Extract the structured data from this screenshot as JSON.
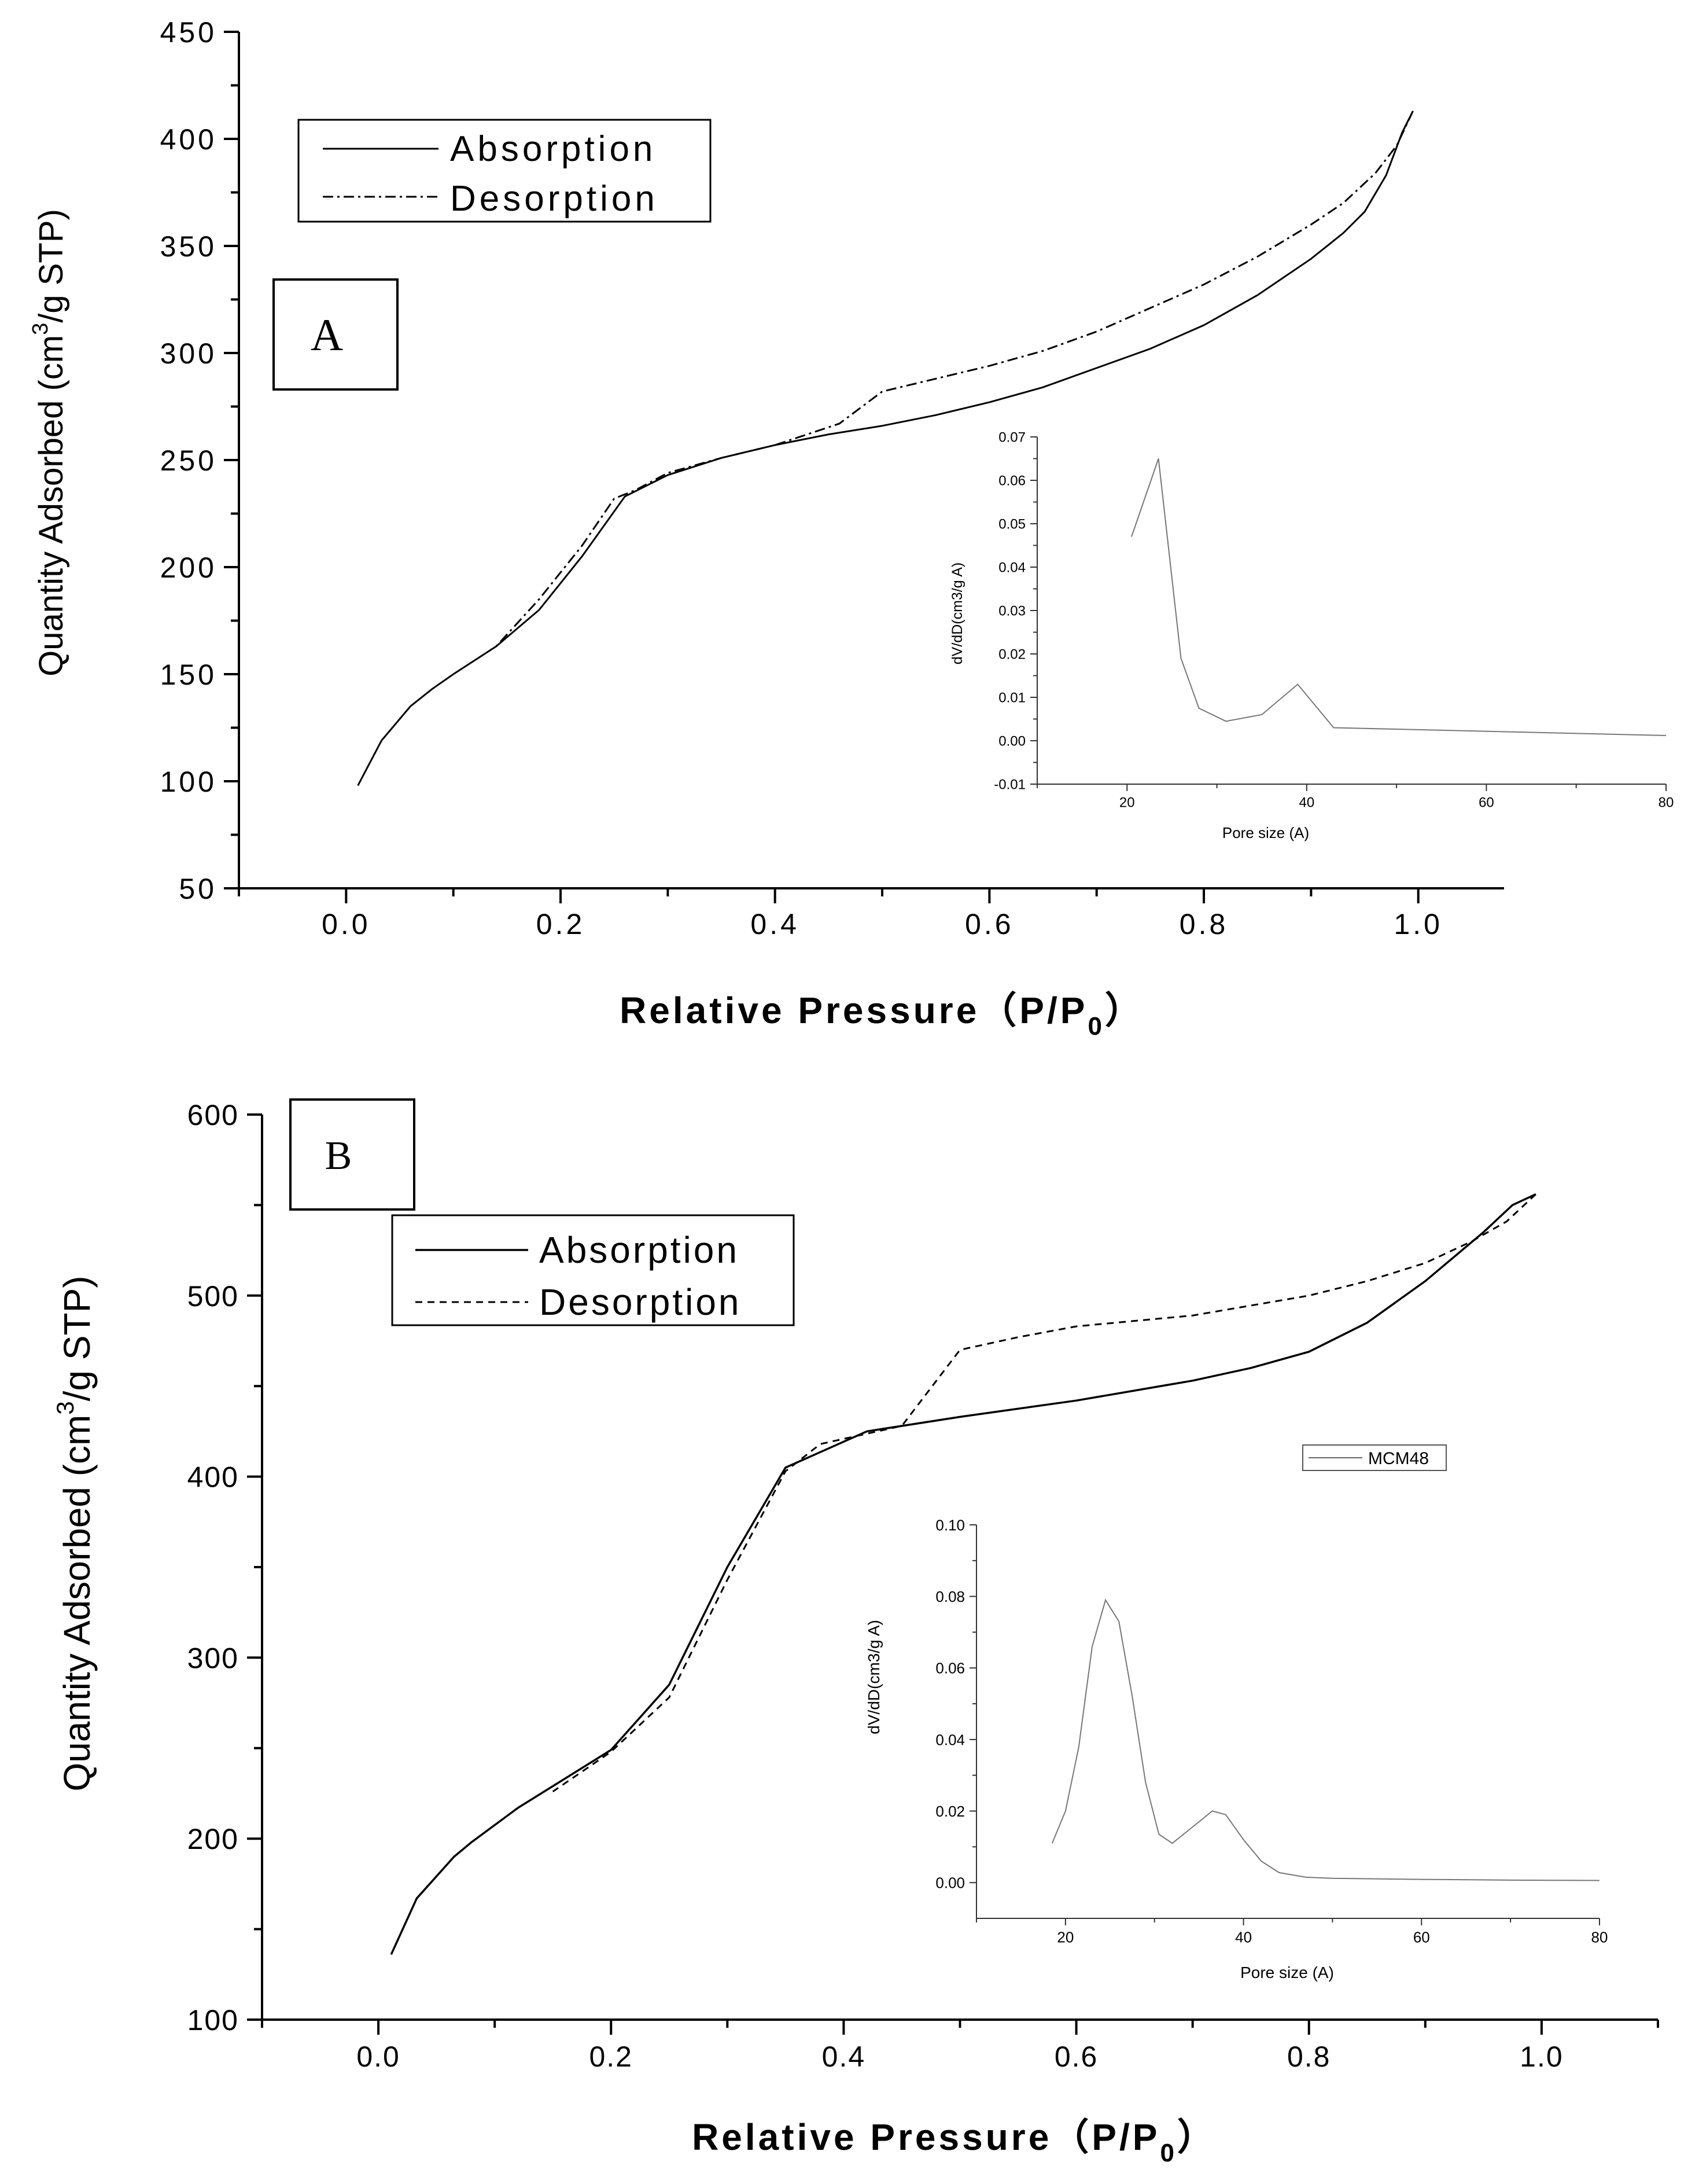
{
  "chart_data": [
    {
      "panel_label": "A",
      "type": "line",
      "xlabel": "Relative Pressure（P/P",
      "xlabel_sub": "0",
      "xlabel_close": "）",
      "ylabel": "Quantity Adsorbed (cm",
      "ylabel_sup": "3",
      "ylabel_rest": "/g STP)",
      "xlim": [
        -0.1,
        1.08
      ],
      "ylim": [
        50,
        450
      ],
      "xticks": [
        "0.0",
        "0.2",
        "0.4",
        "0.6",
        "0.8",
        "1.0"
      ],
      "yticks": [
        "50",
        "100",
        "150",
        "200",
        "250",
        "300",
        "350",
        "400",
        "450"
      ],
      "legend": [
        "Absorption",
        "Desorption"
      ],
      "series": [
        {
          "name": "Absorption",
          "points": [
            [
              0.011,
              98
            ],
            [
              0.033,
              119
            ],
            [
              0.06,
              135
            ],
            [
              0.08,
              143
            ],
            [
              0.1,
              150
            ],
            [
              0.14,
              163
            ],
            [
              0.18,
              180
            ],
            [
              0.22,
              205
            ],
            [
              0.26,
              233
            ],
            [
              0.3,
              243
            ],
            [
              0.35,
              251
            ],
            [
              0.4,
              257
            ],
            [
              0.45,
              262
            ],
            [
              0.5,
              266
            ],
            [
              0.55,
              271
            ],
            [
              0.6,
              277
            ],
            [
              0.65,
              284
            ],
            [
              0.7,
              293
            ],
            [
              0.75,
              302
            ],
            [
              0.8,
              313
            ],
            [
              0.85,
              327
            ],
            [
              0.9,
              344
            ],
            [
              0.93,
              356
            ],
            [
              0.95,
              366
            ],
            [
              0.97,
              383
            ],
            [
              0.985,
              403
            ],
            [
              0.995,
              413
            ]
          ]
        },
        {
          "name": "Desorption",
          "points": [
            [
              0.995,
              413
            ],
            [
              0.98,
              397
            ],
            [
              0.96,
              384
            ],
            [
              0.93,
              370
            ],
            [
              0.9,
              360
            ],
            [
              0.85,
              345
            ],
            [
              0.8,
              332
            ],
            [
              0.75,
              321
            ],
            [
              0.7,
              310
            ],
            [
              0.65,
              301
            ],
            [
              0.6,
              294
            ],
            [
              0.55,
              288
            ],
            [
              0.5,
              282
            ],
            [
              0.46,
              267
            ],
            [
              0.4,
              257
            ],
            [
              0.35,
              251
            ],
            [
              0.3,
              244
            ],
            [
              0.27,
              236
            ],
            [
              0.25,
              232
            ],
            [
              0.22,
              210
            ],
            [
              0.18,
              185
            ],
            [
              0.14,
              163
            ]
          ]
        }
      ],
      "inset": {
        "type": "line",
        "xlabel": "Pore size (A)",
        "ylabel": "dV/dD(cm3/g A)",
        "xlim": [
          10,
          80
        ],
        "ylim": [
          -0.01,
          0.07
        ],
        "xticks": [
          "20",
          "40",
          "60",
          "80"
        ],
        "yticks": [
          "-0.01",
          "0.00",
          "0.01",
          "0.02",
          "0.03",
          "0.04",
          "0.05",
          "0.06",
          "0.07"
        ],
        "points": [
          [
            20.5,
            0.047
          ],
          [
            23.5,
            0.065
          ],
          [
            26,
            0.019
          ],
          [
            28,
            0.0075
          ],
          [
            31,
            0.0045
          ],
          [
            35,
            0.006
          ],
          [
            39,
            0.013
          ],
          [
            43,
            0.003
          ],
          [
            80,
            0.0012
          ]
        ]
      }
    },
    {
      "panel_label": "B",
      "type": "line",
      "xlabel": "Relative Pressure（P/P",
      "xlabel_sub": "0",
      "xlabel_close": "）",
      "ylabel": "Quantity Adsorbed (cm",
      "ylabel_sup": "3",
      "ylabel_rest": "/g STP)",
      "xlim": [
        -0.1,
        1.1
      ],
      "ylim": [
        100,
        600
      ],
      "xticks": [
        "0.0",
        "0.2",
        "0.4",
        "0.6",
        "0.8",
        "1.0"
      ],
      "yticks": [
        "100",
        "200",
        "300",
        "400",
        "500",
        "600"
      ],
      "legend": [
        "Absorption",
        "Desorption"
      ],
      "series": [
        {
          "name": "Absorption",
          "points": [
            [
              0.011,
              136
            ],
            [
              0.033,
              167
            ],
            [
              0.065,
              190
            ],
            [
              0.08,
              198
            ],
            [
              0.12,
              217
            ],
            [
              0.16,
              233
            ],
            [
              0.2,
              249
            ],
            [
              0.25,
              285
            ],
            [
              0.3,
              350
            ],
            [
              0.35,
              405
            ],
            [
              0.42,
              425
            ],
            [
              0.5,
              433
            ],
            [
              0.6,
              442
            ],
            [
              0.7,
              453
            ],
            [
              0.75,
              460
            ],
            [
              0.8,
              469
            ],
            [
              0.85,
              485
            ],
            [
              0.9,
              508
            ],
            [
              0.95,
              535
            ],
            [
              0.975,
              550
            ],
            [
              0.995,
              556
            ]
          ]
        },
        {
          "name": "Desorption",
          "points": [
            [
              0.995,
              556
            ],
            [
              0.97,
              541
            ],
            [
              0.94,
              530
            ],
            [
              0.9,
              518
            ],
            [
              0.85,
              508
            ],
            [
              0.8,
              500
            ],
            [
              0.7,
              489
            ],
            [
              0.6,
              483
            ],
            [
              0.55,
              477
            ],
            [
              0.5,
              470
            ],
            [
              0.45,
              428
            ],
            [
              0.38,
              418
            ],
            [
              0.35,
              403
            ],
            [
              0.3,
              343
            ],
            [
              0.25,
              278
            ],
            [
              0.2,
              248
            ],
            [
              0.15,
              226
            ]
          ]
        }
      ],
      "inset": {
        "type": "line",
        "xlabel": "Pore size (A)",
        "ylabel": "dV/dD(cm3/g A)",
        "legend": [
          "MCM48"
        ],
        "xlim": [
          10,
          80
        ],
        "ylim": [
          -0.01,
          0.1
        ],
        "xticks": [
          "20",
          "40",
          "60",
          "80"
        ],
        "yticks": [
          "0.00",
          "0.02",
          "0.04",
          "0.06",
          "0.08",
          "0.10"
        ],
        "points": [
          [
            18.5,
            0.011
          ],
          [
            20,
            0.02
          ],
          [
            21.5,
            0.038
          ],
          [
            23,
            0.066
          ],
          [
            24.5,
            0.079
          ],
          [
            26,
            0.073
          ],
          [
            27.5,
            0.052
          ],
          [
            29,
            0.028
          ],
          [
            30.5,
            0.0135
          ],
          [
            32,
            0.011
          ],
          [
            34,
            0.015
          ],
          [
            36.5,
            0.02
          ],
          [
            38,
            0.019
          ],
          [
            40,
            0.012
          ],
          [
            42,
            0.006
          ],
          [
            44,
            0.0028
          ],
          [
            47,
            0.0015
          ],
          [
            50,
            0.0012
          ],
          [
            60,
            0.0009
          ],
          [
            70,
            0.0007
          ],
          [
            80,
            0.0006
          ]
        ]
      }
    }
  ]
}
